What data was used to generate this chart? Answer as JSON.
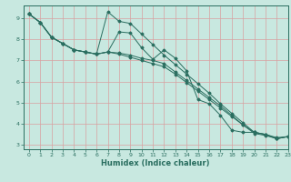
{
  "title": "",
  "xlabel": "Humidex (Indice chaleur)",
  "xlim": [
    -0.5,
    23
  ],
  "ylim": [
    2.8,
    9.6
  ],
  "bg_color": "#c8e8e0",
  "line_color": "#2a6e60",
  "grid_color": "#e8e8e8",
  "xticks": [
    0,
    1,
    2,
    3,
    4,
    5,
    6,
    7,
    8,
    9,
    10,
    11,
    12,
    13,
    14,
    15,
    16,
    17,
    18,
    19,
    20,
    21,
    22,
    23
  ],
  "yticks": [
    3,
    4,
    5,
    6,
    7,
    8,
    9
  ],
  "line1_x": [
    0,
    1,
    2,
    3,
    4,
    5,
    6,
    7,
    8,
    9,
    10,
    11,
    12,
    13,
    14,
    15,
    16,
    17,
    18,
    19,
    20,
    21,
    22,
    23
  ],
  "line1_y": [
    9.2,
    8.8,
    8.1,
    7.8,
    7.5,
    7.4,
    7.3,
    9.3,
    8.85,
    8.75,
    8.25,
    7.75,
    7.25,
    6.8,
    6.35,
    5.9,
    5.45,
    4.95,
    4.5,
    4.05,
    3.6,
    3.5,
    3.35,
    3.4
  ],
  "line2_x": [
    0,
    1,
    2,
    3,
    4,
    5,
    6,
    7,
    8,
    9,
    10,
    11,
    12,
    13,
    14,
    15,
    16,
    17,
    18,
    19,
    20,
    21,
    22,
    23
  ],
  "line2_y": [
    9.2,
    8.8,
    8.1,
    7.8,
    7.5,
    7.4,
    7.3,
    7.4,
    8.35,
    8.3,
    7.6,
    7.05,
    7.5,
    7.1,
    6.5,
    5.15,
    4.95,
    4.4,
    3.7,
    3.6,
    3.6,
    3.5,
    3.3,
    3.4
  ],
  "line3_x": [
    0,
    1,
    2,
    3,
    4,
    5,
    6,
    7,
    8,
    9,
    10,
    11,
    12,
    13,
    14,
    15,
    16,
    17,
    18,
    19,
    20,
    21,
    22,
    23
  ],
  "line3_y": [
    9.2,
    8.8,
    8.1,
    7.8,
    7.5,
    7.4,
    7.3,
    7.4,
    7.35,
    7.25,
    7.1,
    7.0,
    6.85,
    6.45,
    6.05,
    5.65,
    5.25,
    4.85,
    4.4,
    3.95,
    3.6,
    3.5,
    3.3,
    3.4
  ],
  "line4_x": [
    0,
    1,
    2,
    3,
    4,
    5,
    6,
    7,
    8,
    9,
    10,
    11,
    12,
    13,
    14,
    15,
    16,
    17,
    18,
    19,
    20,
    21,
    22,
    23
  ],
  "line4_y": [
    9.2,
    8.8,
    8.1,
    7.8,
    7.5,
    7.4,
    7.3,
    7.4,
    7.3,
    7.15,
    7.0,
    6.85,
    6.7,
    6.35,
    5.95,
    5.55,
    5.15,
    4.75,
    4.35,
    3.95,
    3.55,
    3.45,
    3.3,
    3.4
  ]
}
